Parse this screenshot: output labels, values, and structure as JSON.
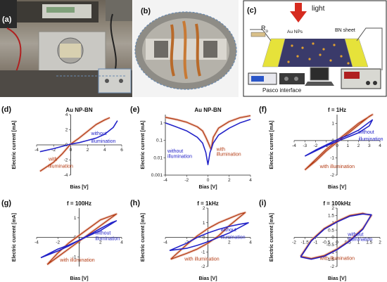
{
  "panels": {
    "a": {
      "label": "(a)"
    },
    "b": {
      "label": "(b)"
    },
    "c": {
      "label": "(c)",
      "light": "light",
      "resistor": "R",
      "resistor_sub": "o",
      "au_nps": "Au NPs",
      "bn_sheet": "BN sheet",
      "pasco": "Pasco interface"
    }
  },
  "colors": {
    "without": "#2323c8",
    "with": "#b43c14",
    "with_fill": "#e8b7a8",
    "light_arrow": "#d62b1f",
    "electrode": "#e6e23a",
    "sheet": "#3a3a6a"
  },
  "chart_data": [
    {
      "id": "d",
      "label": "(d)",
      "type": "line",
      "title": "Au NP-BN",
      "xlabel": "Bias [V]",
      "ylabel": "Electric current [mA]",
      "xlim": [
        -4,
        6
      ],
      "ylim": [
        -4,
        4
      ],
      "xticks": [
        -4,
        -2,
        0,
        2,
        4,
        6
      ],
      "yticks": [
        -4,
        -2,
        0,
        2,
        4
      ],
      "yscale": "linear",
      "annotations": [
        {
          "text": "without",
          "series": "without",
          "x": 2.4,
          "y": 1.3
        },
        {
          "text": "illumination",
          "series": "without",
          "x": 2.4,
          "y": 0.3
        },
        {
          "text": "with",
          "series": "with",
          "x": -2.6,
          "y": -2.1
        },
        {
          "text": "illumination",
          "series": "with",
          "x": -2.6,
          "y": -3.0
        }
      ],
      "series": [
        {
          "key": "with",
          "x": [
            -3.6,
            -2,
            -1,
            0,
            1,
            2,
            3,
            4,
            4.6
          ],
          "y": [
            -3.5,
            -2.3,
            -1.2,
            0.1,
            0.9,
            1.8,
            2.7,
            3.3,
            3.6
          ]
        },
        {
          "key": "without",
          "x": [
            -3.6,
            -2,
            -1,
            0,
            1,
            2,
            3,
            4,
            5,
            5.5
          ],
          "y": [
            -0.9,
            -0.5,
            -0.2,
            0.1,
            0.3,
            0.6,
            0.9,
            1.4,
            2.3,
            3.2
          ]
        }
      ]
    },
    {
      "id": "e",
      "label": "(e)",
      "type": "line",
      "title": "Au NP-BN",
      "xlabel": "Bias [V]",
      "ylabel": "Electric current [mA]",
      "xlim": [
        -4,
        4
      ],
      "ylim": [
        0.001,
        3
      ],
      "xticks": [
        -4,
        -2,
        0,
        2,
        4
      ],
      "yticks": [
        0.001,
        0.01,
        0.1,
        1
      ],
      "yscale": "log",
      "annotations": [
        {
          "text": "without",
          "series": "without",
          "x": -3.8,
          "y": 0.02
        },
        {
          "text": "illumination",
          "series": "without",
          "x": -3.8,
          "y": 0.01
        },
        {
          "text": "with",
          "series": "with",
          "x": 0.8,
          "y": 0.025
        },
        {
          "text": "illumination",
          "series": "with",
          "x": 0.8,
          "y": 0.013
        }
      ],
      "series": [
        {
          "key": "with",
          "x": [
            -4,
            -3,
            -2,
            -1,
            -0.5,
            -0.2,
            0,
            0.3,
            0.5,
            1,
            2,
            3,
            4
          ],
          "y": [
            2.1,
            1.6,
            1.1,
            0.6,
            0.35,
            0.15,
            0.08,
            0.03,
            0.15,
            0.5,
            1.2,
            2.0,
            2.6
          ]
        },
        {
          "key": "without",
          "x": [
            -4,
            -3,
            -2,
            -1,
            -0.5,
            -0.2,
            0,
            0.2,
            0.5,
            1,
            2,
            3,
            4
          ],
          "y": [
            1.0,
            0.6,
            0.35,
            0.15,
            0.07,
            0.02,
            0.004,
            0.02,
            0.07,
            0.2,
            0.5,
            1.0,
            1.6
          ]
        }
      ]
    },
    {
      "id": "f",
      "label": "(f)",
      "type": "line",
      "title": "f = 1Hz",
      "xlabel": "Bias [V]",
      "ylabel": "Electric current [mA]",
      "xlim": [
        -4,
        4
      ],
      "ylim": [
        -2,
        1.5
      ],
      "xticks": [
        -4,
        -3,
        -2,
        -1,
        0,
        1,
        2,
        3,
        4
      ],
      "yticks": [
        -2,
        -1,
        0,
        1
      ],
      "yscale": "linear",
      "annotations": [
        {
          "text": "without",
          "series": "without",
          "x": 2.0,
          "y": 0.4
        },
        {
          "text": "illumination",
          "series": "without",
          "x": 2.0,
          "y": 0.0
        },
        {
          "text": "with illumination",
          "series": "with",
          "x": -1.6,
          "y": -1.6
        }
      ],
      "series": [
        {
          "key": "with",
          "x": [
            -3,
            -2,
            -1,
            0,
            1,
            2,
            3,
            3.3,
            2,
            1,
            0,
            -1,
            -2,
            -3
          ],
          "y": [
            -1.7,
            -1.2,
            -0.6,
            -0.1,
            0.4,
            0.9,
            1.4,
            1.5,
            1.0,
            0.5,
            0.0,
            -0.5,
            -1.1,
            -1.7
          ]
        },
        {
          "key": "without",
          "x": [
            -3,
            -2,
            -1,
            0,
            1,
            2,
            3,
            3.3,
            2,
            1,
            0,
            -1,
            -2,
            -3
          ],
          "y": [
            -0.9,
            -0.6,
            -0.3,
            -0.05,
            0.2,
            0.45,
            0.85,
            1.2,
            0.6,
            0.3,
            0.05,
            -0.25,
            -0.55,
            -0.9
          ]
        }
      ]
    },
    {
      "id": "g",
      "label": "(g)",
      "type": "line",
      "title": "f = 100Hz",
      "xlabel": "Bias [V]",
      "ylabel": "Electric current [mA]",
      "xlim": [
        -4,
        4
      ],
      "ylim": [
        -1.5,
        1.5
      ],
      "xticks": [
        -4,
        -2,
        0,
        2,
        4
      ],
      "yticks": [
        -1,
        0,
        1
      ],
      "yscale": "linear",
      "annotations": [
        {
          "text": "without",
          "series": "without",
          "x": 1.5,
          "y": 0.15
        },
        {
          "text": "illumination",
          "series": "without",
          "x": 1.5,
          "y": -0.15
        },
        {
          "text": "with illumination",
          "series": "with",
          "x": -1.8,
          "y": -1.25
        }
      ],
      "series": [
        {
          "key": "with",
          "x": [
            -3,
            -2,
            -1,
            0,
            1,
            2,
            3,
            3.5,
            2,
            1,
            0,
            -1,
            -2,
            -3
          ],
          "y": [
            -1.4,
            -1.0,
            -0.6,
            -0.2,
            0.2,
            0.6,
            1.0,
            1.2,
            0.9,
            0.5,
            0.1,
            -0.3,
            -0.8,
            -1.4
          ]
        },
        {
          "key": "without",
          "x": [
            -3.6,
            -2,
            -1,
            0,
            1,
            2,
            3,
            3.5,
            2,
            1,
            0,
            -1,
            -2,
            -3.6
          ],
          "y": [
            -1.05,
            -0.7,
            -0.45,
            -0.15,
            0.15,
            0.45,
            0.75,
            0.85,
            0.35,
            0.1,
            -0.15,
            -0.4,
            -0.6,
            -1.05
          ]
        }
      ]
    },
    {
      "id": "h",
      "label": "(h)",
      "type": "line",
      "title": "f = 1kHz",
      "xlabel": "Bias [V]",
      "ylabel": "Electric current [mA]",
      "xlim": [
        -4,
        4
      ],
      "ylim": [
        -2,
        2
      ],
      "xticks": [
        -4,
        -2,
        0,
        2,
        4
      ],
      "yticks": [
        -2,
        -1,
        0,
        1,
        2
      ],
      "yscale": "linear",
      "annotations": [
        {
          "text": "without",
          "series": "without",
          "x": 1.2,
          "y": 0.4
        },
        {
          "text": "illumination",
          "series": "without",
          "x": 1.2,
          "y": -0.1
        },
        {
          "text": "with illumination",
          "series": "with",
          "x": -2.2,
          "y": -1.6
        }
      ],
      "series": [
        {
          "key": "with",
          "x": [
            -3.5,
            -2,
            -1,
            0,
            1,
            2,
            3,
            3.5,
            2,
            1,
            0,
            -1,
            -2,
            -3.5
          ],
          "y": [
            -1.5,
            -0.5,
            0.1,
            0.6,
            1.0,
            1.3,
            1.6,
            1.7,
            0.8,
            0.1,
            -0.4,
            -0.8,
            -1.1,
            -1.5
          ]
        },
        {
          "key": "without",
          "x": [
            -3.6,
            -2,
            -1,
            0,
            1,
            2,
            3,
            3.8,
            2,
            1,
            0,
            -1,
            -2,
            -3.6
          ],
          "y": [
            -0.9,
            -0.4,
            0.0,
            0.3,
            0.55,
            0.75,
            0.9,
            1.0,
            0.3,
            0.0,
            -0.3,
            -0.55,
            -0.75,
            -0.9
          ]
        }
      ]
    },
    {
      "id": "i",
      "label": "(i)",
      "type": "line",
      "title": "f = 100kHz",
      "xlabel": "Bias [V]",
      "ylabel": "Electric current [mA]",
      "xlim": [
        -2,
        2
      ],
      "ylim": [
        -2,
        2
      ],
      "xticks": [
        -2,
        -1.5,
        -1,
        -0.5,
        0,
        0.5,
        1,
        1.5,
        2
      ],
      "yticks": [
        -2,
        -1.5,
        -1,
        -0.5,
        0,
        0.5,
        1,
        1.5,
        2
      ],
      "yscale": "linear",
      "annotations": [
        {
          "text": "without",
          "series": "without",
          "x": 0.5,
          "y": 0.1
        },
        {
          "text": "illumination",
          "series": "without",
          "x": 0.5,
          "y": -0.25
        },
        {
          "text": "with illumination",
          "series": "with",
          "x": -0.8,
          "y": -1.55
        }
      ],
      "series": [
        {
          "key": "with",
          "x": [
            -1.7,
            -1.2,
            -0.6,
            0,
            0.6,
            1.2,
            1.6,
            1.2,
            0.6,
            0,
            -0.6,
            -1.2,
            -1.7
          ],
          "y": [
            -1.3,
            -0.2,
            0.6,
            1.1,
            1.5,
            1.65,
            1.5,
            0.6,
            -0.2,
            -0.8,
            -1.25,
            -1.45,
            -1.3
          ]
        },
        {
          "key": "without",
          "x": [
            -1.7,
            -1.2,
            -0.6,
            0,
            0.6,
            1.2,
            1.6,
            1.2,
            0.6,
            0,
            -0.6,
            -1.2,
            -1.7
          ],
          "y": [
            -1.35,
            -0.25,
            0.55,
            1.05,
            1.45,
            1.6,
            1.55,
            0.55,
            -0.25,
            -0.85,
            -1.3,
            -1.5,
            -1.35
          ]
        }
      ]
    }
  ]
}
